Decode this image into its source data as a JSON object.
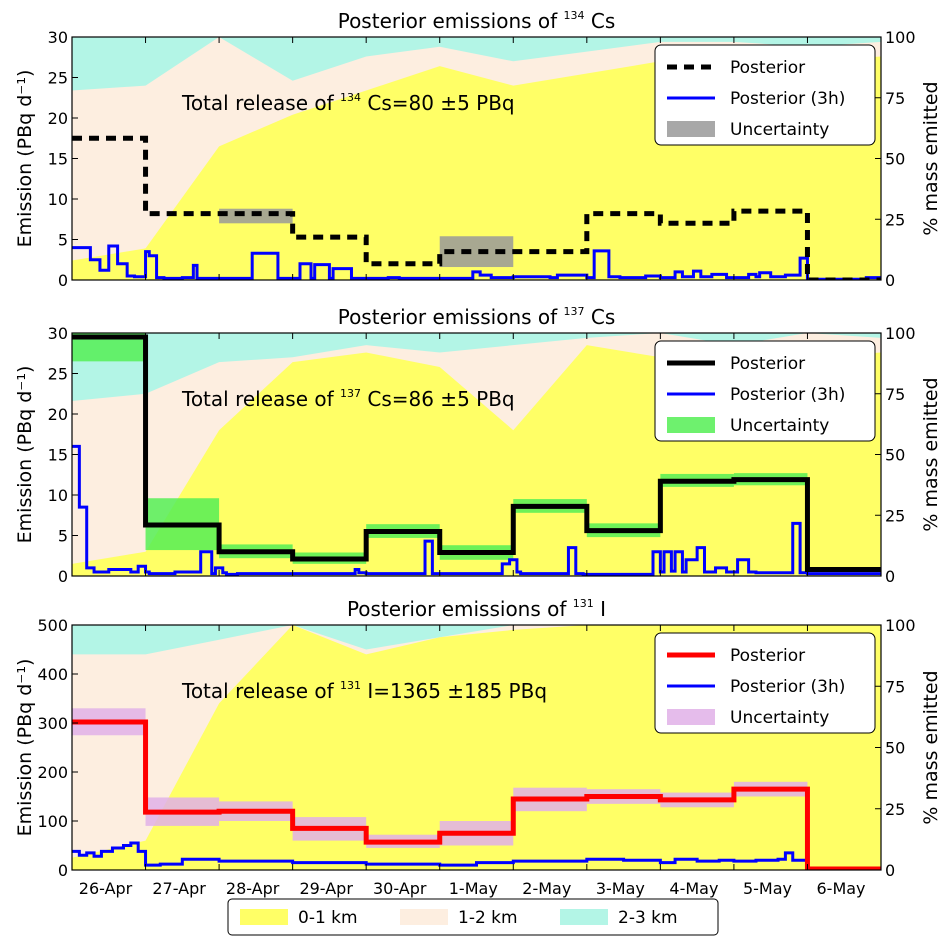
{
  "colors": {
    "layer_0_1": "#ffff66",
    "layer_1_2": "#fdeee0",
    "layer_2_3": "#b3f5e6",
    "posterior_cs134": "#000000",
    "posterior_cs137": "#000000",
    "posterior_i131": "#ff0000",
    "posterior_3h": "#0000ff",
    "uncertainty_cs134": "#999999",
    "uncertainty_cs137": "#55ee55",
    "uncertainty_i131": "#e0b0e8"
  },
  "bottom_legend": {
    "items": [
      {
        "label": "0-1 km",
        "color_key": "layer_0_1"
      },
      {
        "label": "1-2 km",
        "color_key": "layer_1_2"
      },
      {
        "label": "2-3 km",
        "color_key": "layer_2_3"
      }
    ]
  },
  "chart_data": [
    {
      "type": "line",
      "title_prefix": "Posterior emissions of ",
      "title_sup": "134",
      "title_suffix": " Cs",
      "ylabel": "Emission (PBq d⁻¹)",
      "ylabel_right": "% mass emitted",
      "ylim": [
        0,
        30
      ],
      "yticks": [
        0,
        5,
        10,
        15,
        20,
        25,
        30
      ],
      "ylim_right": [
        0,
        100
      ],
      "yticks_right": [
        0,
        25,
        50,
        75,
        100
      ],
      "xlim": [
        0,
        11
      ],
      "xticks": [
        "26-Apr",
        "27-Apr",
        "28-Apr",
        "29-Apr",
        "30-Apr",
        "1-May",
        "2-May",
        "3-May",
        "4-May",
        "5-May",
        "6-May"
      ],
      "annotation": {
        "prefix": "Total release of ",
        "sup": "134",
        "suffix": " Cs=80 ±5 PBq"
      },
      "posterior": {
        "name": "Posterior",
        "style": "dashed",
        "color_key": "posterior_cs134",
        "x": [
          0,
          1,
          2,
          3,
          4,
          5,
          6,
          7,
          8,
          9,
          10
        ],
        "y": [
          17.5,
          8.2,
          8.2,
          5.3,
          2.0,
          3.5,
          3.5,
          8.2,
          7.0,
          8.5,
          0.0
        ]
      },
      "uncertainty": {
        "name": "Uncertainty",
        "color_key": "uncertainty_cs134",
        "x": [
          0,
          1,
          2,
          3,
          4,
          5,
          6,
          7,
          8,
          9,
          10
        ],
        "low": [
          17.5,
          8.2,
          7.0,
          5.3,
          2.0,
          1.6,
          3.5,
          8.2,
          7.0,
          8.5,
          0.0
        ],
        "high": [
          17.5,
          8.2,
          8.8,
          5.3,
          2.0,
          5.4,
          3.5,
          8.2,
          7.0,
          8.5,
          0.0
        ]
      },
      "posterior_3h": {
        "name": "Posterior (3h)",
        "color_key": "posterior_3h",
        "x": [
          0,
          0.25,
          0.38,
          0.5,
          0.62,
          0.75,
          0.85,
          1,
          1.05,
          1.15,
          1.25,
          1.5,
          1.65,
          1.7,
          2,
          2.45,
          2.8,
          3,
          3.1,
          3.25,
          3.3,
          3.5,
          3.55,
          3.8,
          4,
          4.3,
          4.45,
          4.6,
          5.45,
          5.55,
          5.7,
          6,
          6.5,
          6.6,
          7,
          7.1,
          7.3,
          7.45,
          7.8,
          8,
          8.2,
          8.3,
          8.45,
          8.55,
          8.7,
          8.9,
          9.2,
          9.3,
          9.35,
          9.5,
          9.7,
          9.9,
          10,
          10.8,
          11
        ],
        "y": [
          4.0,
          2.5,
          1.2,
          4.2,
          2.0,
          0.5,
          0.4,
          3.5,
          3.0,
          0.3,
          0.2,
          0.3,
          1.8,
          0.2,
          0.2,
          3.3,
          0.2,
          0.2,
          2.0,
          0.2,
          1.9,
          0.2,
          1.4,
          0.2,
          0.2,
          0.3,
          0.2,
          0.2,
          1.0,
          0.6,
          0.3,
          0.4,
          0.3,
          0.6,
          0.3,
          3.6,
          0.4,
          0.3,
          0.5,
          0.3,
          1.0,
          0.4,
          1.1,
          0.4,
          0.7,
          0.3,
          0.7,
          0.4,
          0.9,
          0.4,
          0.6,
          2.7,
          0.1,
          0.3,
          0.4
        ]
      },
      "layers": {
        "x": [
          0,
          1,
          2,
          3,
          4,
          5,
          6,
          7,
          8,
          9,
          10,
          11
        ],
        "pct_0_1": [
          8,
          13,
          55,
          68,
          78,
          88,
          80,
          85,
          90,
          95,
          90,
          92
        ],
        "pct_0_2": [
          78,
          80,
          100,
          82,
          92,
          96,
          90,
          94,
          98,
          98,
          96,
          98
        ]
      }
    },
    {
      "type": "line",
      "title_prefix": "Posterior emissions of ",
      "title_sup": "137",
      "title_suffix": " Cs",
      "ylabel": "Emission (PBq d⁻¹)",
      "ylabel_right": "% mass emitted",
      "ylim": [
        0,
        30
      ],
      "yticks": [
        0,
        5,
        10,
        15,
        20,
        25,
        30
      ],
      "ylim_right": [
        0,
        100
      ],
      "yticks_right": [
        0,
        25,
        50,
        75,
        100
      ],
      "xlim": [
        0,
        11
      ],
      "xticks": [
        "26-Apr",
        "27-Apr",
        "28-Apr",
        "29-Apr",
        "30-Apr",
        "1-May",
        "2-May",
        "3-May",
        "4-May",
        "5-May",
        "6-May"
      ],
      "annotation": {
        "prefix": "Total release of ",
        "sup": "137",
        "suffix": " Cs=86 ±5 PBq"
      },
      "posterior": {
        "name": "Posterior",
        "style": "solid",
        "color_key": "posterior_cs137",
        "x": [
          0,
          1,
          2,
          3,
          4,
          5,
          6,
          7,
          8,
          9,
          10
        ],
        "y": [
          29.5,
          6.3,
          3.0,
          2.1,
          5.5,
          2.9,
          8.6,
          5.6,
          11.7,
          11.9,
          0.8
        ]
      },
      "uncertainty": {
        "name": "Uncertainty",
        "color_key": "uncertainty_cs137",
        "x": [
          0,
          1,
          2,
          3,
          4,
          5,
          6,
          7,
          8,
          9,
          10
        ],
        "low": [
          26.5,
          3.2,
          2.2,
          1.5,
          4.7,
          2.0,
          7.8,
          4.8,
          11.0,
          11.2,
          0.8
        ],
        "high": [
          30.0,
          9.6,
          3.9,
          2.9,
          6.4,
          3.8,
          9.5,
          6.5,
          12.6,
          12.7,
          0.8
        ]
      },
      "posterior_3h": {
        "name": "Posterior (3h)",
        "color_key": "posterior_3h",
        "x": [
          0,
          0.1,
          0.2,
          0.3,
          0.5,
          0.8,
          0.9,
          1,
          1.05,
          1.1,
          1.4,
          1.75,
          1.9,
          1.95,
          2.05,
          2.1,
          2.25,
          2.5,
          3.85,
          3.9,
          4,
          4.8,
          4.9,
          5,
          5.85,
          5.95,
          6.05,
          6.1,
          6.5,
          6.75,
          6.85,
          6.95,
          7.9,
          8,
          8.05,
          8.15,
          8.2,
          8.3,
          8.35,
          8.5,
          8.6,
          8.75,
          8.9,
          9.05,
          9.2,
          9.3,
          9.8,
          9.9,
          10,
          10.8,
          11
        ],
        "y": [
          16.0,
          8.5,
          1.0,
          0.5,
          0.8,
          0.5,
          1.2,
          0.5,
          0.3,
          0.3,
          0.5,
          3.0,
          0.3,
          1.0,
          0.4,
          0.2,
          0.3,
          0.3,
          0.8,
          0.4,
          0.3,
          4.3,
          0.3,
          0.3,
          1.5,
          2.0,
          0.5,
          0.3,
          0.3,
          3.5,
          0.3,
          0.2,
          3.0,
          0.5,
          3.0,
          0.6,
          3.0,
          0.5,
          2.0,
          3.5,
          0.5,
          1.0,
          0.5,
          2.0,
          0.5,
          0.4,
          6.5,
          0.4,
          0.3,
          0.3,
          0.3
        ]
      },
      "layers": {
        "x": [
          0,
          1,
          2,
          3,
          4,
          5,
          6,
          7,
          8,
          9,
          10,
          11
        ],
        "pct_0_1": [
          5,
          10,
          60,
          88,
          92,
          86,
          60,
          95,
          90,
          92,
          90,
          92
        ],
        "pct_0_2": [
          72,
          75,
          88,
          90,
          95,
          92,
          95,
          98,
          100,
          95,
          100,
          98
        ]
      }
    },
    {
      "type": "line",
      "title_prefix": "Posterior emissions of ",
      "title_sup": "131",
      "title_suffix": " I",
      "ylabel": "Emission (PBq d⁻¹)",
      "ylabel_right": "% mass emitted",
      "ylim": [
        0,
        500
      ],
      "yticks": [
        0,
        100,
        200,
        300,
        400,
        500
      ],
      "ylim_right": [
        0,
        100
      ],
      "yticks_right": [
        0,
        25,
        50,
        75,
        100
      ],
      "xlim": [
        0,
        11
      ],
      "xticks": [
        "26-Apr",
        "27-Apr",
        "28-Apr",
        "29-Apr",
        "30-Apr",
        "1-May",
        "2-May",
        "3-May",
        "4-May",
        "5-May",
        "6-May"
      ],
      "annotation": {
        "prefix": "Total release of ",
        "sup": "131",
        "suffix": " I=1365 ±185 PBq"
      },
      "posterior": {
        "name": "Posterior",
        "style": "solid",
        "color_key": "posterior_i131",
        "x": [
          0,
          1,
          2,
          3,
          4,
          5,
          6,
          7,
          8,
          9,
          10
        ],
        "y": [
          302,
          118,
          120,
          85,
          57,
          75,
          145,
          150,
          143,
          165,
          2
        ]
      },
      "uncertainty": {
        "name": "Uncertainty",
        "color_key": "uncertainty_i131",
        "x": [
          0,
          1,
          2,
          3,
          4,
          5,
          6,
          7,
          8,
          9,
          10
        ],
        "low": [
          275,
          90,
          100,
          60,
          45,
          50,
          120,
          135,
          128,
          150,
          2
        ],
        "high": [
          330,
          148,
          140,
          108,
          72,
          100,
          168,
          165,
          158,
          180,
          2
        ]
      },
      "posterior_3h": {
        "name": "Posterior (3h)",
        "color_key": "posterior_3h",
        "x": [
          0,
          0.1,
          0.2,
          0.3,
          0.4,
          0.55,
          0.7,
          0.8,
          0.9,
          1,
          1.2,
          1.5,
          2,
          3,
          4,
          5,
          5.5,
          6,
          6.5,
          7,
          7.5,
          8,
          8.2,
          8.5,
          8.8,
          9,
          9.3,
          9.6,
          9.7,
          9.8,
          10,
          11
        ],
        "y": [
          38,
          30,
          35,
          28,
          38,
          45,
          50,
          55,
          38,
          10,
          12,
          22,
          18,
          15,
          12,
          10,
          15,
          18,
          18,
          22,
          20,
          15,
          22,
          18,
          20,
          18,
          20,
          22,
          35,
          20,
          3,
          2
        ]
      },
      "layers": {
        "x": [
          0,
          1,
          2,
          3,
          4,
          5,
          6,
          7,
          8,
          9,
          10,
          11
        ],
        "pct_0_1": [
          5,
          12,
          68,
          100,
          88,
          95,
          98,
          100,
          100,
          100,
          100,
          100
        ],
        "pct_0_2": [
          88,
          88,
          94,
          100,
          90,
          95,
          100,
          100,
          100,
          100,
          100,
          100
        ]
      }
    }
  ]
}
